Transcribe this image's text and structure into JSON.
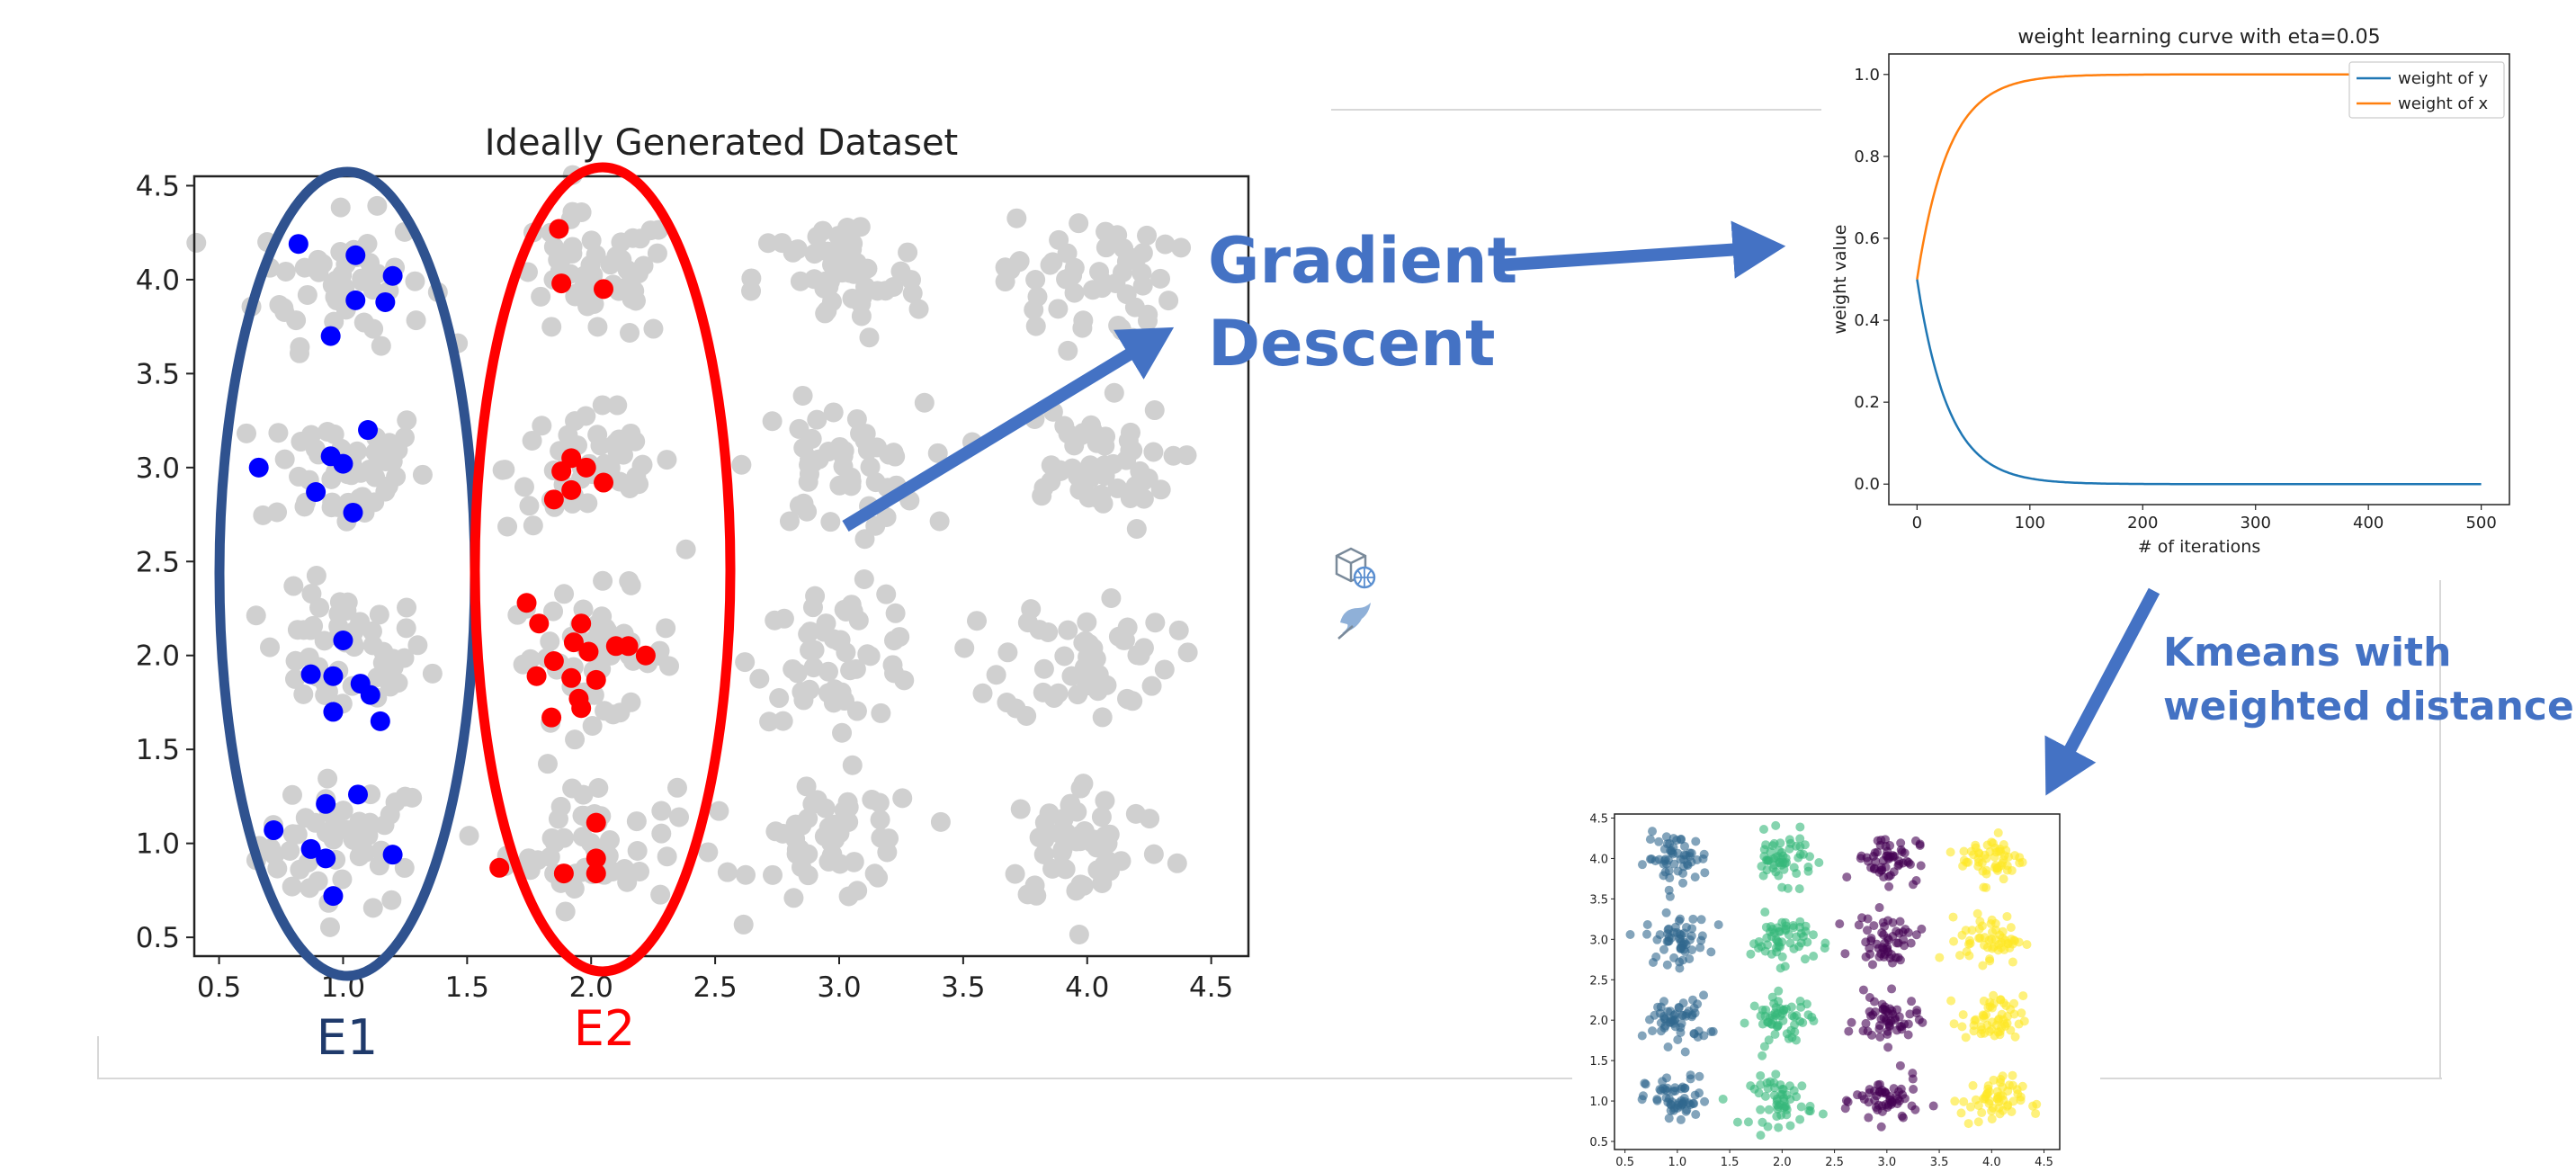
{
  "charts": {
    "dataset": {
      "title": "Ideally Generated Dataset",
      "xticks": [
        "0.5",
        "1.0",
        "1.5",
        "2.0",
        "2.5",
        "3.0",
        "3.5",
        "4.0",
        "4.5"
      ],
      "yticks": [
        "4.5",
        "4.0",
        "3.5",
        "3.0",
        "2.5",
        "2.0",
        "1.5",
        "1.0",
        "0.5"
      ],
      "e1_label": "E1",
      "e2_label": "E2"
    },
    "curve": {
      "title": "weight learning curve with eta=0.05",
      "xlabel": "# of iterations",
      "ylabel": "weight value",
      "xticks": [
        "0",
        "100",
        "200",
        "300",
        "400",
        "500"
      ],
      "yticks": [
        "1.0",
        "0.8",
        "0.6",
        "0.4",
        "0.2",
        "0.0"
      ],
      "legend": [
        "weight of y",
        "weight of x"
      ]
    },
    "kmeans": {
      "xticks": [
        "0.5",
        "1.0",
        "1.5",
        "2.0",
        "2.5",
        "3.0",
        "3.5",
        "4.0",
        "4.5"
      ],
      "yticks": [
        "4.5",
        "4.0",
        "3.5",
        "3.0",
        "2.5",
        "2.0",
        "1.5",
        "1.0",
        "0.5"
      ]
    }
  },
  "annotations": {
    "gd_line1": "Gradient",
    "gd_line2": "Descent",
    "km_line1": "Kmeans with",
    "km_line2": "weighted distance"
  },
  "colors": {
    "gray": "#d0d0d0",
    "blue": "#0000ff",
    "red": "#ff0000",
    "e1_ellipse": "#2f528f",
    "e2_ellipse": "#ff0000",
    "annotation": "#4472C4",
    "curve_y": "#1f77b4",
    "curve_x": "#ff7f0e",
    "kmeans": [
      "#31688e",
      "#35b779",
      "#440154",
      "#fde725"
    ]
  },
  "chart_data": [
    {
      "type": "scatter",
      "title": "Ideally Generated Dataset",
      "xlim": [
        0.4,
        4.65
      ],
      "ylim": [
        0.4,
        4.55
      ],
      "grid": false,
      "cluster_centers": [
        [
          1,
          1
        ],
        [
          1,
          2
        ],
        [
          1,
          3
        ],
        [
          1,
          4
        ],
        [
          2,
          1
        ],
        [
          2,
          2
        ],
        [
          2,
          3
        ],
        [
          2,
          4
        ],
        [
          3,
          1
        ],
        [
          3,
          2
        ],
        [
          3,
          3
        ],
        [
          3,
          4
        ],
        [
          4,
          1
        ],
        [
          4,
          2
        ],
        [
          4,
          3
        ],
        [
          4,
          4
        ]
      ],
      "highlighted": {
        "E1": [
          [
            0.82,
            4.19
          ],
          [
            1.05,
            4.13
          ],
          [
            1.2,
            4.02
          ],
          [
            1.05,
            3.89
          ],
          [
            1.17,
            3.88
          ],
          [
            0.95,
            3.7
          ],
          [
            1.1,
            3.2
          ],
          [
            0.95,
            3.06
          ],
          [
            1.0,
            3.02
          ],
          [
            0.66,
            3.0
          ],
          [
            0.89,
            2.87
          ],
          [
            1.04,
            2.76
          ],
          [
            1.0,
            2.08
          ],
          [
            0.87,
            1.9
          ],
          [
            0.96,
            1.89
          ],
          [
            1.07,
            1.85
          ],
          [
            1.11,
            1.79
          ],
          [
            0.96,
            1.7
          ],
          [
            1.15,
            1.65
          ],
          [
            1.06,
            1.26
          ],
          [
            0.93,
            1.21
          ],
          [
            0.72,
            1.07
          ],
          [
            0.87,
            0.97
          ],
          [
            0.93,
            0.92
          ],
          [
            1.2,
            0.94
          ],
          [
            0.96,
            0.72
          ]
        ],
        "E2": [
          [
            1.87,
            4.27
          ],
          [
            1.88,
            3.98
          ],
          [
            2.05,
            3.95
          ],
          [
            1.92,
            3.05
          ],
          [
            1.98,
            3.0
          ],
          [
            1.88,
            2.98
          ],
          [
            2.05,
            2.92
          ],
          [
            1.92,
            2.88
          ],
          [
            1.85,
            2.83
          ],
          [
            1.74,
            2.28
          ],
          [
            1.79,
            2.17
          ],
          [
            1.96,
            2.17
          ],
          [
            1.93,
            2.07
          ],
          [
            1.99,
            2.02
          ],
          [
            2.1,
            2.05
          ],
          [
            2.15,
            2.05
          ],
          [
            2.22,
            2.0
          ],
          [
            1.85,
            1.97
          ],
          [
            1.92,
            1.88
          ],
          [
            1.78,
            1.89
          ],
          [
            2.02,
            1.87
          ],
          [
            1.95,
            1.77
          ],
          [
            1.96,
            1.72
          ],
          [
            1.84,
            1.67
          ],
          [
            2.02,
            1.11
          ],
          [
            1.63,
            0.87
          ],
          [
            1.89,
            0.84
          ],
          [
            2.02,
            0.92
          ],
          [
            2.02,
            0.84
          ]
        ]
      }
    },
    {
      "type": "line",
      "title": "weight learning curve with eta=0.05",
      "xlabel": "# of iterations",
      "ylabel": "weight value",
      "xlim": [
        -25,
        525
      ],
      "ylim": [
        -0.05,
        1.05
      ],
      "legend_position": "top-right",
      "grid": false,
      "x": [
        0,
        10,
        20,
        30,
        40,
        50,
        60,
        80,
        100,
        120,
        150,
        200,
        300,
        400,
        500
      ],
      "series": [
        {
          "name": "weight of y",
          "values": [
            0.5,
            0.35,
            0.25,
            0.17,
            0.12,
            0.08,
            0.06,
            0.03,
            0.013,
            0.007,
            0.003,
            0.001,
            0.0,
            0.0,
            0.0
          ]
        },
        {
          "name": "weight of x",
          "values": [
            0.5,
            0.65,
            0.75,
            0.83,
            0.88,
            0.92,
            0.94,
            0.97,
            0.987,
            0.993,
            0.997,
            0.999,
            1.0,
            1.0,
            1.0
          ]
        }
      ]
    },
    {
      "type": "scatter",
      "xlim": [
        0.4,
        4.65
      ],
      "ylim": [
        0.4,
        4.55
      ],
      "grid": false,
      "cluster_columns": [
        1,
        2,
        3,
        4
      ],
      "cluster_rows": [
        1,
        2,
        3,
        4
      ]
    }
  ]
}
